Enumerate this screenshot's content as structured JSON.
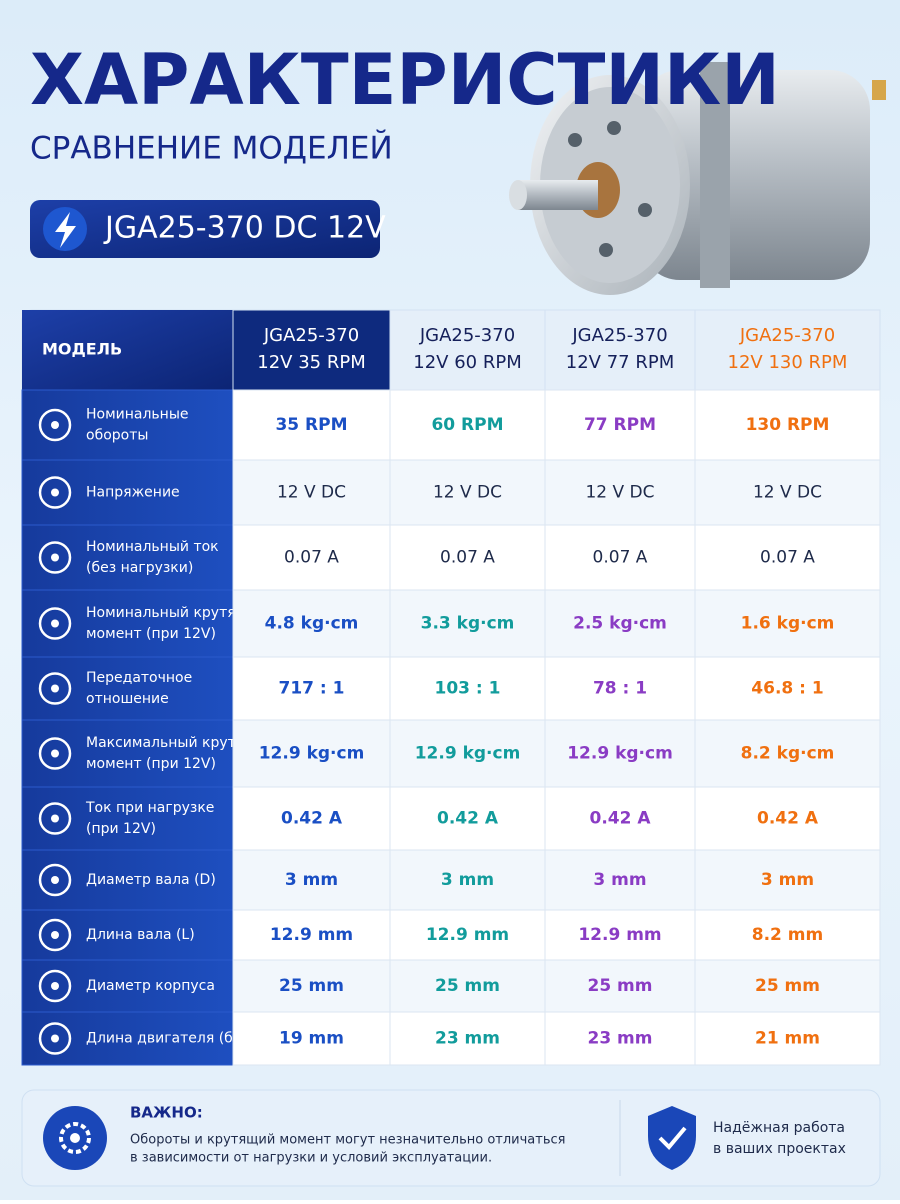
{
  "header": {
    "title": "ХАРАКТЕРИСТИКИ",
    "subtitle": "СРАВНЕНИЕ МОДЕЛЕЙ",
    "badge": "JGA25-370 DC 12V"
  },
  "table": {
    "corner": "МОДЕЛЬ",
    "columns": [
      {
        "lines": [
          "JGA25-370",
          "12V 35 RPM"
        ],
        "color": "#1a4fc4"
      },
      {
        "lines": [
          "JGA25-370",
          "12V 60 RPM"
        ],
        "color": "#129c9c"
      },
      {
        "lines": [
          "JGA25-370",
          "12V 77 RPM"
        ],
        "color": "#8a3cc4"
      },
      {
        "lines": [
          "JGA25-370",
          "12V 130 RPM"
        ],
        "color": "#f07010"
      }
    ],
    "rows": [
      {
        "label": [
          "Номинальные",
          "обороты"
        ],
        "cells": [
          "35 RPM",
          "60 RPM",
          "77 RPM",
          "130 RPM"
        ]
      },
      {
        "label": [
          "Напряжение"
        ],
        "cells": [
          "12 V DC",
          "12 V DC",
          "12 V DC",
          "12 V DC"
        ]
      },
      {
        "label": [
          "Номинальный ток",
          "(без нагрузки)"
        ],
        "cells": [
          "0.07 A",
          "0.07 A",
          "0.07 A",
          "0.07 A"
        ]
      },
      {
        "label": [
          "Номинальный крутящий",
          "момент (при 12V)"
        ],
        "cells": [
          "4.8 kg·cm",
          "3.3 kg·cm",
          "2.5 kg·cm",
          "1.6 kg·cm"
        ]
      },
      {
        "label": [
          "Передаточное",
          "отношение"
        ],
        "cells": [
          "717 : 1",
          "103 : 1",
          "78 : 1",
          "46.8 : 1"
        ]
      },
      {
        "label": [
          "Максимальный крутящий",
          "момент (при 12V)"
        ],
        "cells": [
          "12.9 kg·cm",
          "12.9 kg·cm",
          "12.9 kg·cm",
          "8.2 kg·cm"
        ]
      },
      {
        "label": [
          "Ток при нагрузке",
          "(при 12V)"
        ],
        "cells": [
          "0.42 A",
          "0.42 A",
          "0.42 A",
          "0.42 A"
        ]
      },
      {
        "label": [
          "Диаметр вала (D)"
        ],
        "cells": [
          "3 mm",
          "3 mm",
          "3 mm",
          "3 mm"
        ]
      },
      {
        "label": [
          "Длина вала (L)"
        ],
        "cells": [
          "12.9 mm",
          "12.9 mm",
          "12.9 mm",
          "8.2 mm"
        ]
      },
      {
        "label": [
          "Диаметр корпуса"
        ],
        "cells": [
          "25 mm",
          "25 mm",
          "25 mm",
          "25 mm"
        ]
      },
      {
        "label": [
          "Длина двигателя (без вала)"
        ],
        "cells": [
          "19 mm",
          "23 mm",
          "23 mm",
          "21 mm"
        ]
      }
    ]
  },
  "footer": {
    "note_title": "ВАЖНО:",
    "note_lines": [
      "Обороты и крутящий момент могут незначительно отличаться",
      "в зависимости от нагрузки и условий эксплуатации."
    ],
    "badge_lines": [
      "Надёжная работа",
      "в ваших проектах"
    ]
  }
}
